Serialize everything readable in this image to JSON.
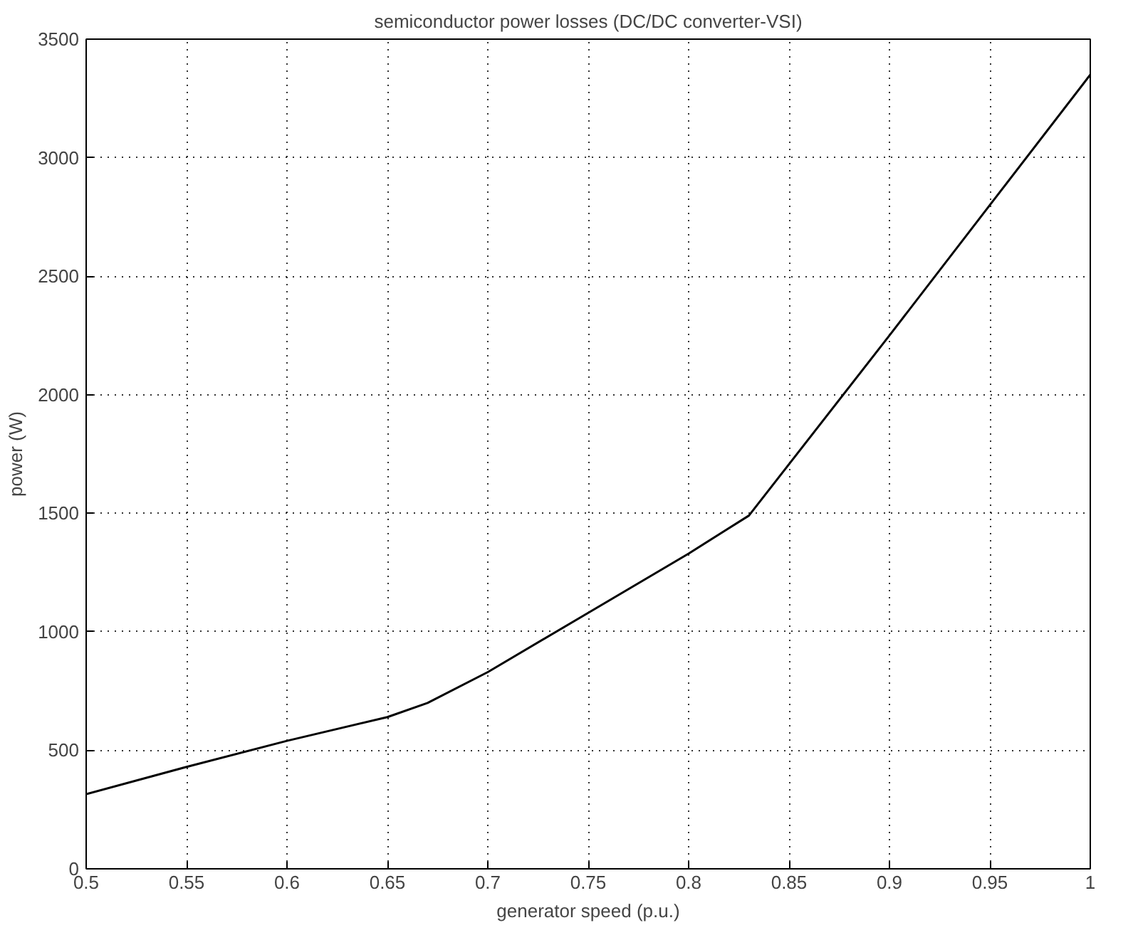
{
  "chart_data": {
    "type": "line",
    "title": "semiconductor power losses (DC/DC converter-VSI)",
    "xlabel": "generator speed (p.u.)",
    "ylabel": "power (W)",
    "x": [
      0.5,
      0.55,
      0.6,
      0.65,
      0.67,
      0.7,
      0.75,
      0.8,
      0.83,
      0.9,
      0.95,
      1.0
    ],
    "series": [
      {
        "color": "#000000",
        "values": [
          315,
          430,
          540,
          640,
          700,
          830,
          1080,
          1330,
          1490,
          2250,
          2800,
          3350
        ]
      }
    ],
    "xlim": [
      0.5,
      1.0
    ],
    "ylim": [
      0,
      3500
    ],
    "xticks": [
      0.5,
      0.55,
      0.6,
      0.65,
      0.7,
      0.75,
      0.8,
      0.85,
      0.9,
      0.95,
      1
    ],
    "yticks": [
      0,
      500,
      1000,
      1500,
      2000,
      2500,
      3000,
      3500
    ],
    "grid": true,
    "marker": "none",
    "line_style": "solid"
  }
}
